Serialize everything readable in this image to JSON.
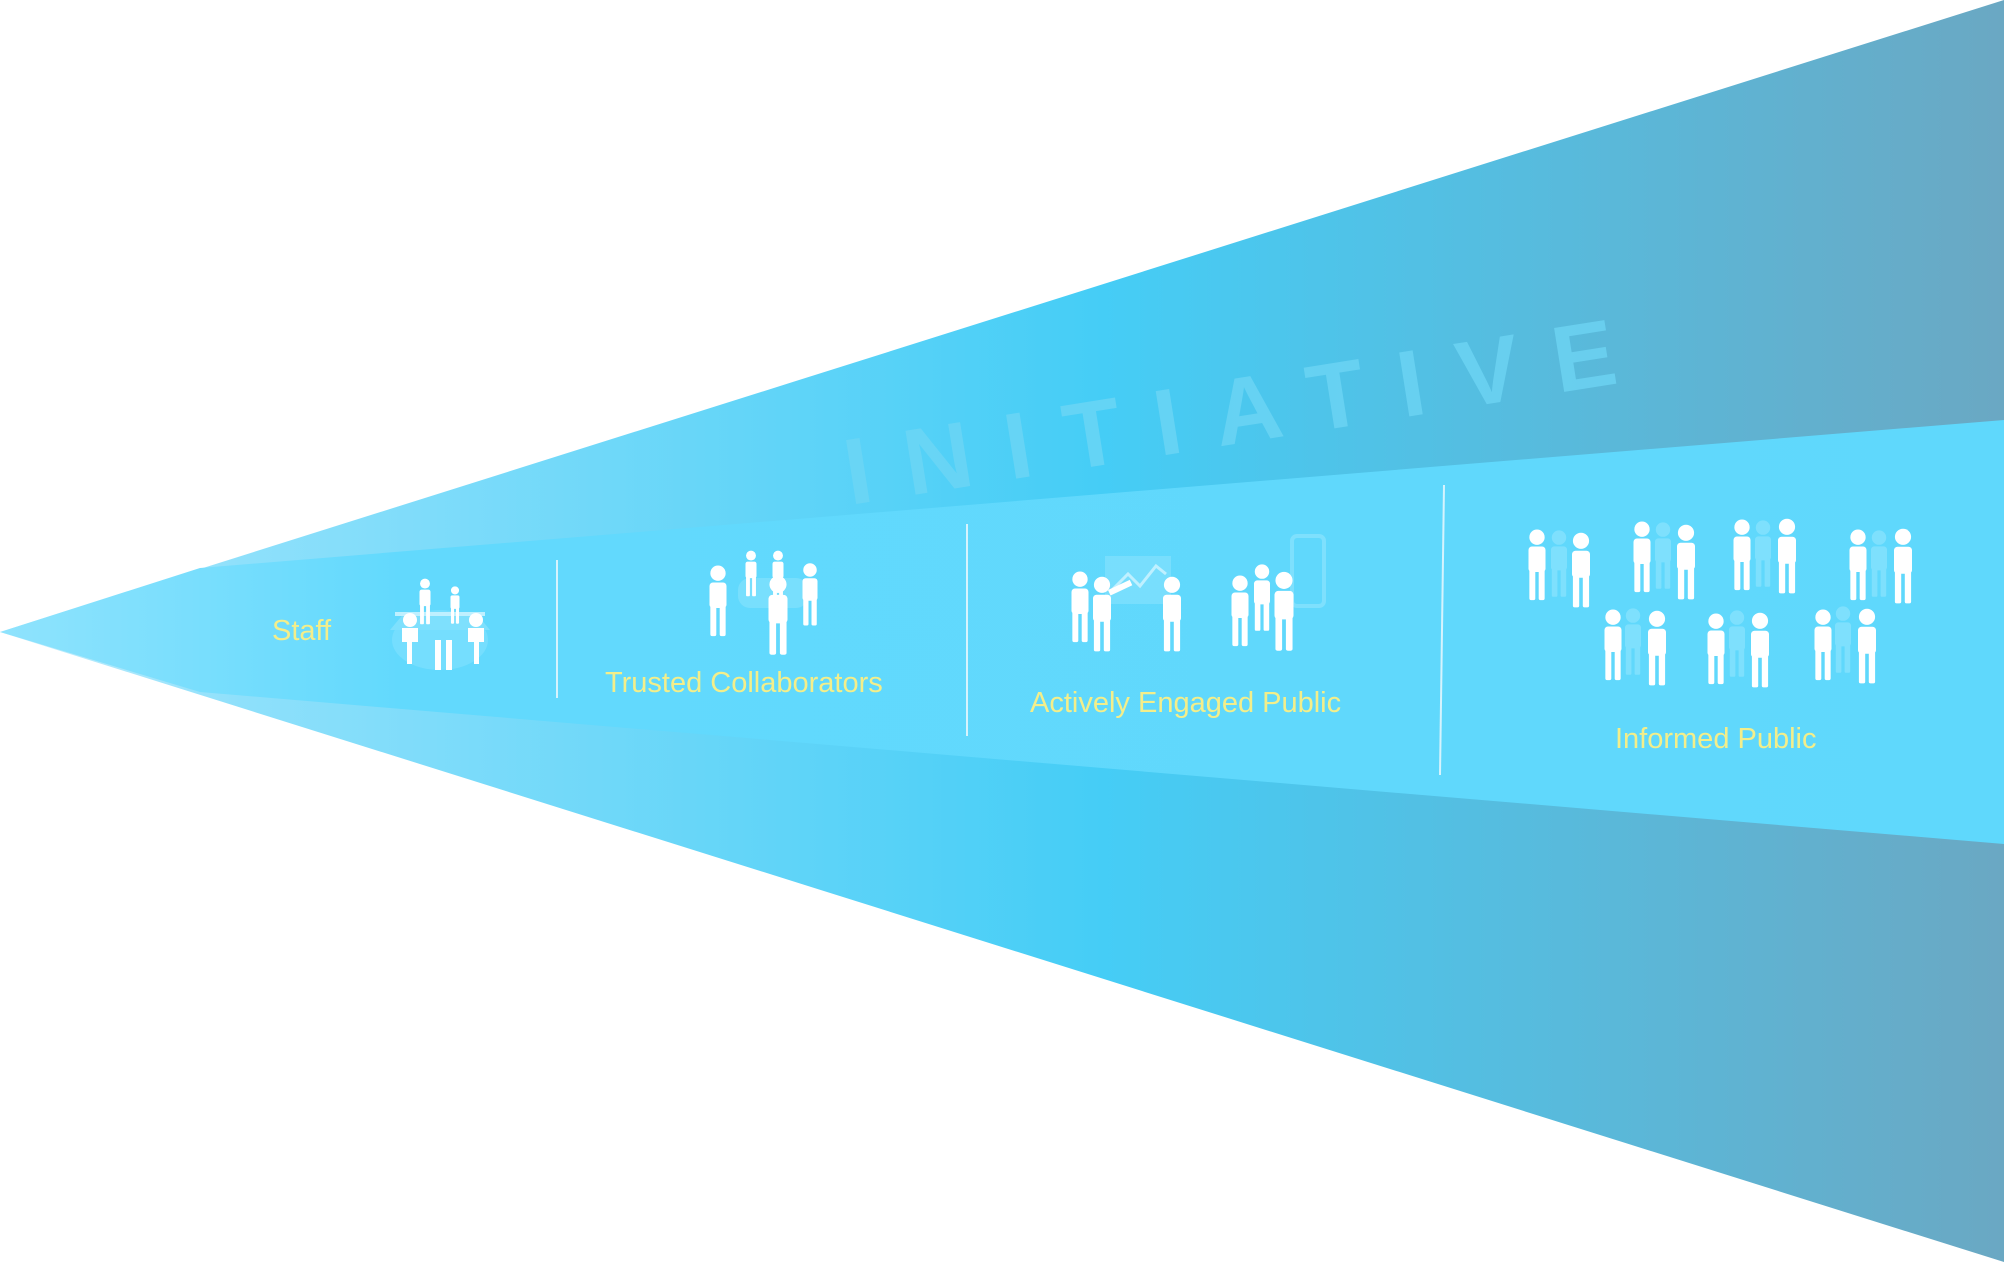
{
  "diagram": {
    "watermark": "INITIATIVE",
    "stages": [
      {
        "label": "Staff",
        "icon": "meeting-table-icon"
      },
      {
        "label": "Trusted Collaborators",
        "icon": "small-group-icon"
      },
      {
        "label": "Actively Engaged Public",
        "icon": "presentation-and-mobile-icon"
      },
      {
        "label": "Informed Public",
        "icon": "crowd-icon"
      }
    ],
    "colors": {
      "outer_left": "#a8e6fb",
      "outer_mid": "#45cdf6",
      "outer_right": "#6aa8c3",
      "inner_band": "#5fd8fc",
      "label_text": "#f3ee8a",
      "figure": "#ffffff",
      "divider": "#d6f3fd"
    }
  }
}
